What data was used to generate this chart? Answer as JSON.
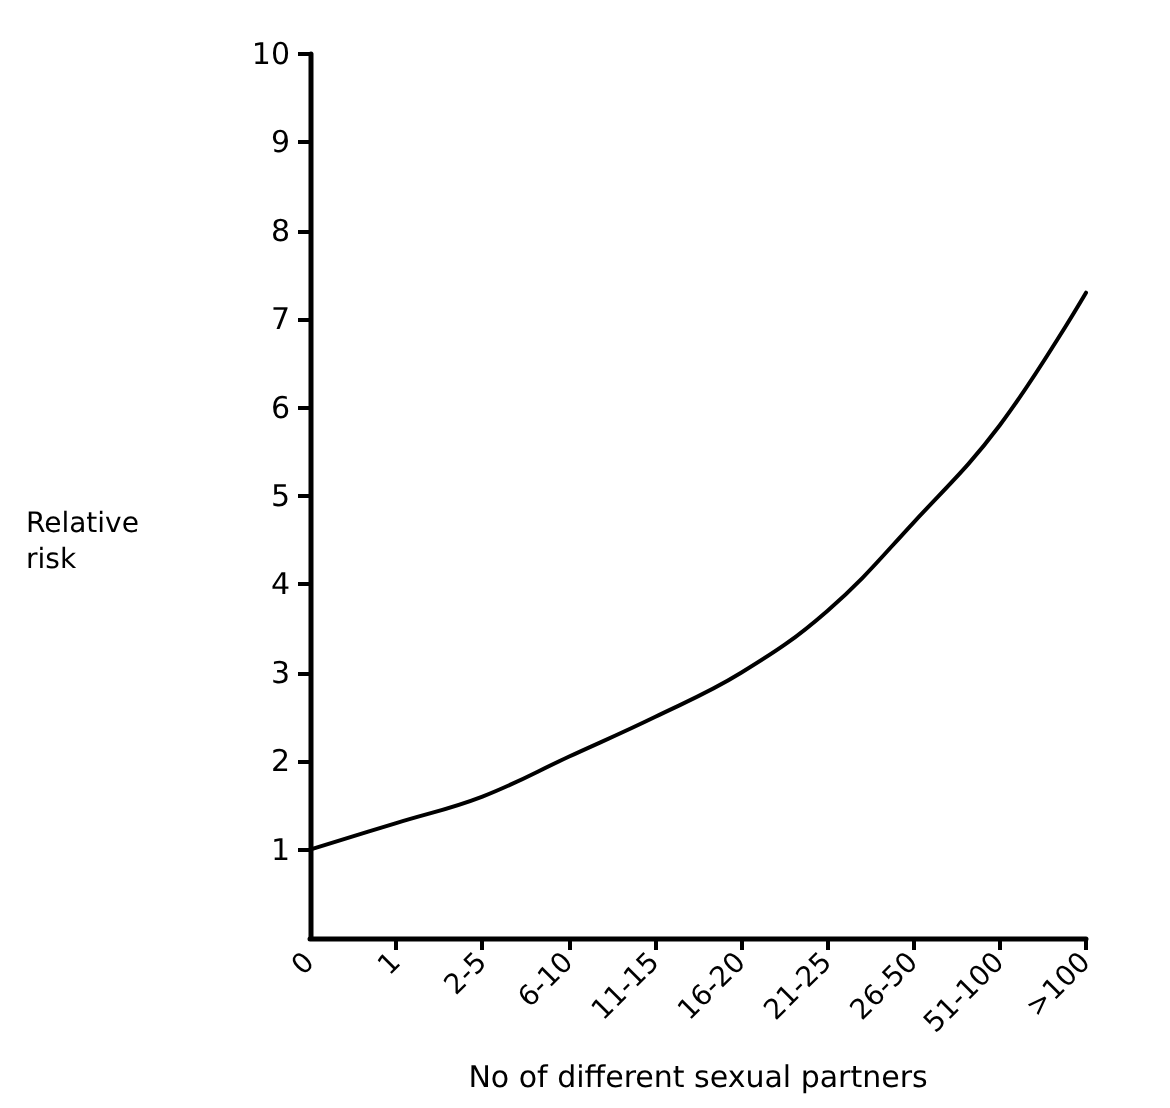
{
  "chart_data": {
    "type": "line",
    "xlabel": "No of different sexual partners",
    "ylabel": "Relative\nrisk",
    "categories": [
      "0",
      "1",
      "2-5",
      "6-10",
      "11-15",
      "16-20",
      "21-25",
      "26-50",
      "51-100",
      ">100"
    ],
    "values": [
      1.0,
      1.3,
      1.6,
      2.05,
      2.5,
      3.0,
      3.7,
      4.7,
      5.8,
      7.3
    ],
    "color": "#000000",
    "ylim": [
      0,
      10
    ],
    "yticks": [
      1,
      2,
      3,
      4,
      5,
      6,
      7,
      8,
      9,
      10
    ],
    "grid": false,
    "marker": "none",
    "line_style": "solid"
  }
}
